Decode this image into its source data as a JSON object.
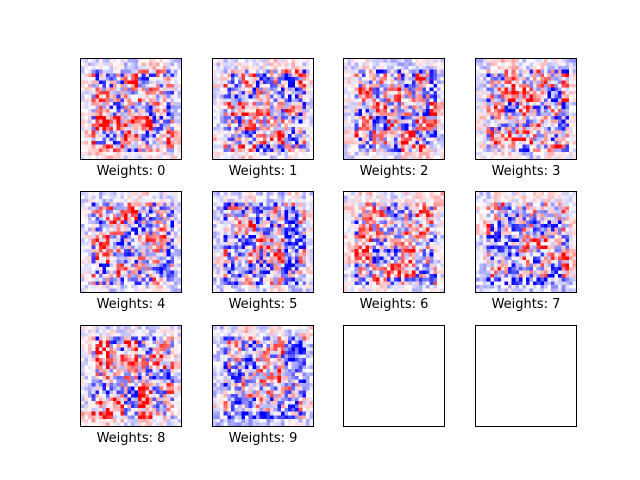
{
  "chart_data": {
    "type": "heatmap",
    "grid_shape": [
      3,
      4
    ],
    "image_shape": [
      28,
      28
    ],
    "colormap": "bwr",
    "colors": {
      "negative": "#0000ff",
      "zero": "#ffffff",
      "positive": "#ff0000",
      "frame": "#000000"
    },
    "panels": [
      {
        "label": "Weights: 0",
        "empty": false,
        "seed": 11,
        "mean_bias": 0.05
      },
      {
        "label": "Weights: 1",
        "empty": false,
        "seed": 23,
        "mean_bias": 0.0
      },
      {
        "label": "Weights: 2",
        "empty": false,
        "seed": 37,
        "mean_bias": 0.0
      },
      {
        "label": "Weights: 3",
        "empty": false,
        "seed": 41,
        "mean_bias": -0.05
      },
      {
        "label": "Weights: 4",
        "empty": false,
        "seed": 53,
        "mean_bias": 0.05
      },
      {
        "label": "Weights: 5",
        "empty": false,
        "seed": 67,
        "mean_bias": -0.1
      },
      {
        "label": "Weights: 6",
        "empty": false,
        "seed": 71,
        "mean_bias": 0.05
      },
      {
        "label": "Weights: 7",
        "empty": false,
        "seed": 83,
        "mean_bias": -0.1
      },
      {
        "label": "Weights: 8",
        "empty": false,
        "seed": 97,
        "mean_bias": 0.15
      },
      {
        "label": "Weights: 9",
        "empty": false,
        "seed": 101,
        "mean_bias": -0.15
      },
      {
        "label": "",
        "empty": true
      },
      {
        "label": "",
        "empty": true
      }
    ]
  }
}
